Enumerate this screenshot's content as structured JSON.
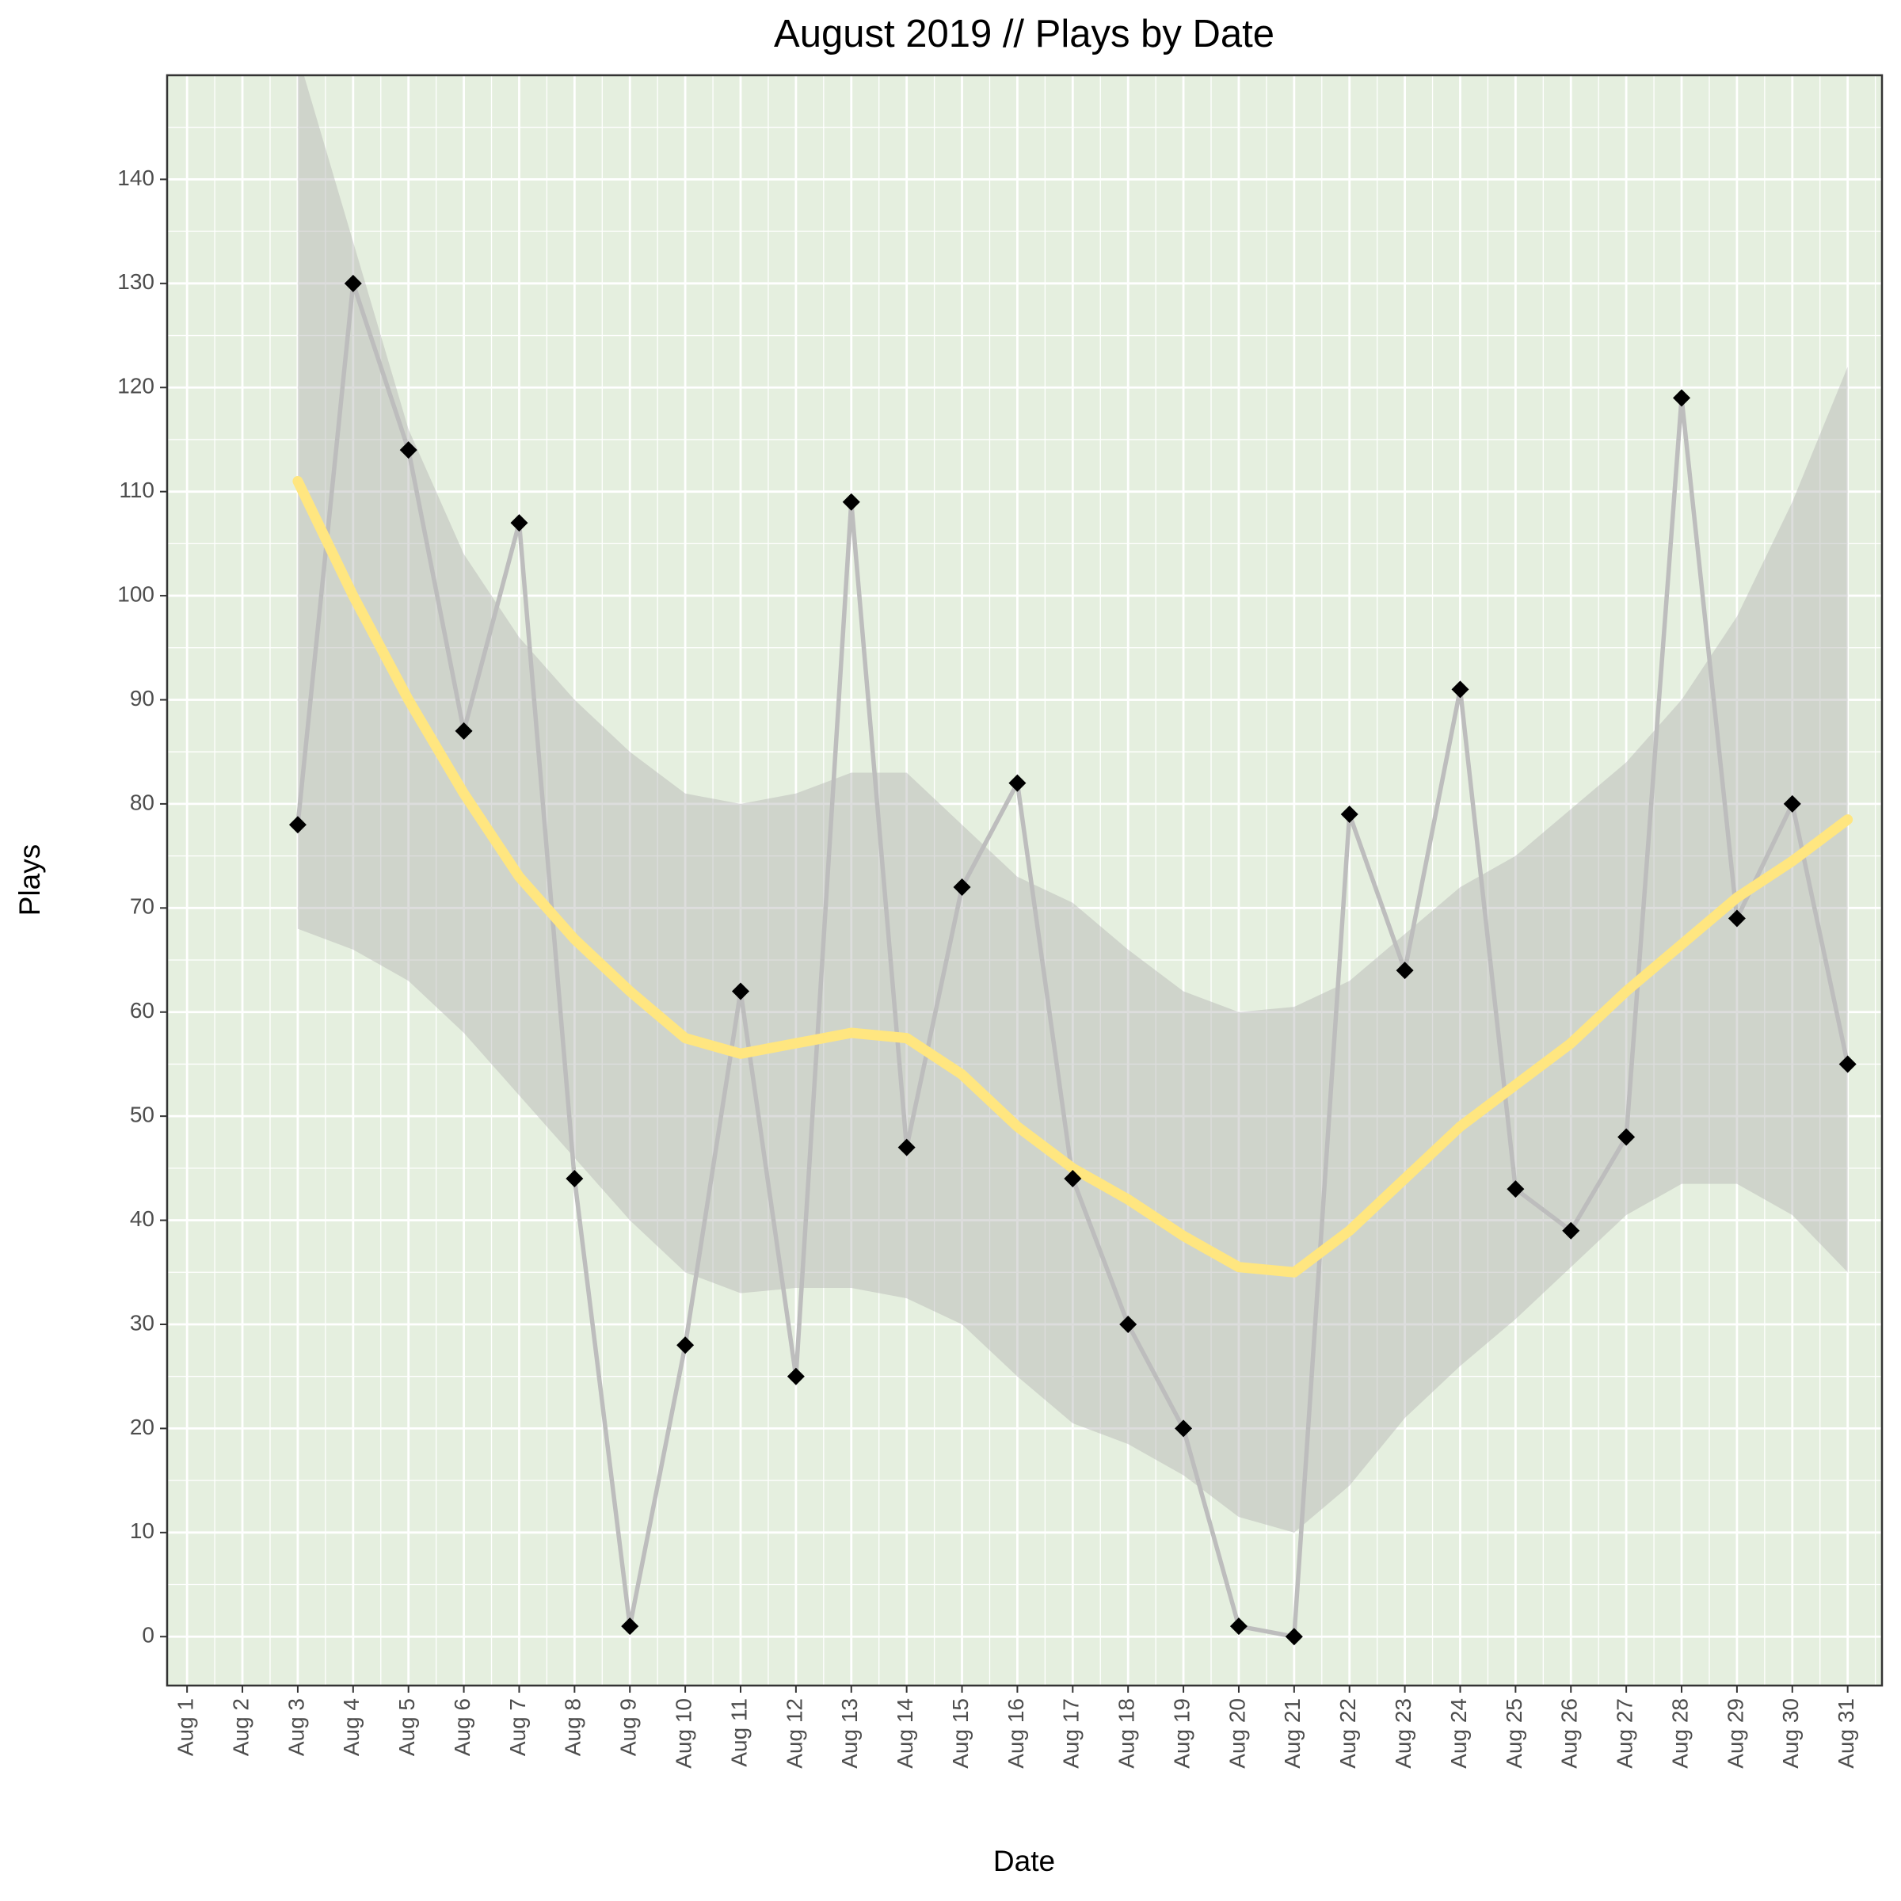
{
  "chart_data": {
    "type": "line",
    "title": "August 2019 // Plays by Date",
    "xlabel": "Date",
    "ylabel": "Plays",
    "categories": [
      "Aug 1",
      "Aug 2",
      "Aug 3",
      "Aug 4",
      "Aug 5",
      "Aug 6",
      "Aug 7",
      "Aug 8",
      "Aug 9",
      "Aug 10",
      "Aug 11",
      "Aug 12",
      "Aug 13",
      "Aug 14",
      "Aug 15",
      "Aug 16",
      "Aug 17",
      "Aug 18",
      "Aug 19",
      "Aug 20",
      "Aug 21",
      "Aug 22",
      "Aug 23",
      "Aug 24",
      "Aug 25",
      "Aug 26",
      "Aug 27",
      "Aug 28",
      "Aug 29",
      "Aug 30",
      "Aug 31"
    ],
    "series": [
      {
        "color": "#bdbdbd",
        "marker_color": "#000000",
        "values": [
          null,
          null,
          78,
          130,
          114,
          87,
          107,
          44,
          1,
          28,
          62,
          25,
          109,
          47,
          72,
          82,
          44,
          30,
          20,
          1,
          0,
          79,
          64,
          91,
          43,
          39,
          48,
          119,
          69,
          80,
          55
        ]
      }
    ],
    "smooth": {
      "color": "#ffe680",
      "values": [
        null,
        null,
        111,
        100,
        90,
        81,
        73,
        67,
        62,
        57.5,
        56,
        57,
        58,
        57.5,
        54,
        49,
        45,
        42,
        38.5,
        35.5,
        35,
        39,
        44,
        49,
        53,
        57,
        62,
        66.5,
        71,
        74.5,
        78.5
      ]
    },
    "band": {
      "color": "#b4b4b4",
      "upper": [
        null,
        null,
        152,
        134,
        116,
        104,
        96,
        90,
        85,
        81,
        80,
        81,
        83,
        83,
        78,
        73,
        70.5,
        66,
        62,
        60,
        60.5,
        63,
        67.5,
        72,
        75,
        79.5,
        84,
        90,
        98,
        109,
        122
      ],
      "lower": [
        null,
        null,
        68,
        66,
        63,
        58,
        52,
        46,
        40,
        35,
        33,
        33.5,
        33.5,
        32.5,
        30,
        25,
        20.5,
        18.5,
        15.5,
        11.5,
        10,
        14.5,
        21,
        26,
        30.5,
        35.5,
        40.5,
        43.5,
        43.5,
        40.5,
        35
      ]
    },
    "ylim": [
      -4.7,
      150
    ],
    "yticks": [
      0,
      10,
      20,
      30,
      40,
      50,
      60,
      70,
      80,
      90,
      100,
      110,
      120,
      130,
      140
    ],
    "grid": true,
    "background": "#e5efdf"
  }
}
